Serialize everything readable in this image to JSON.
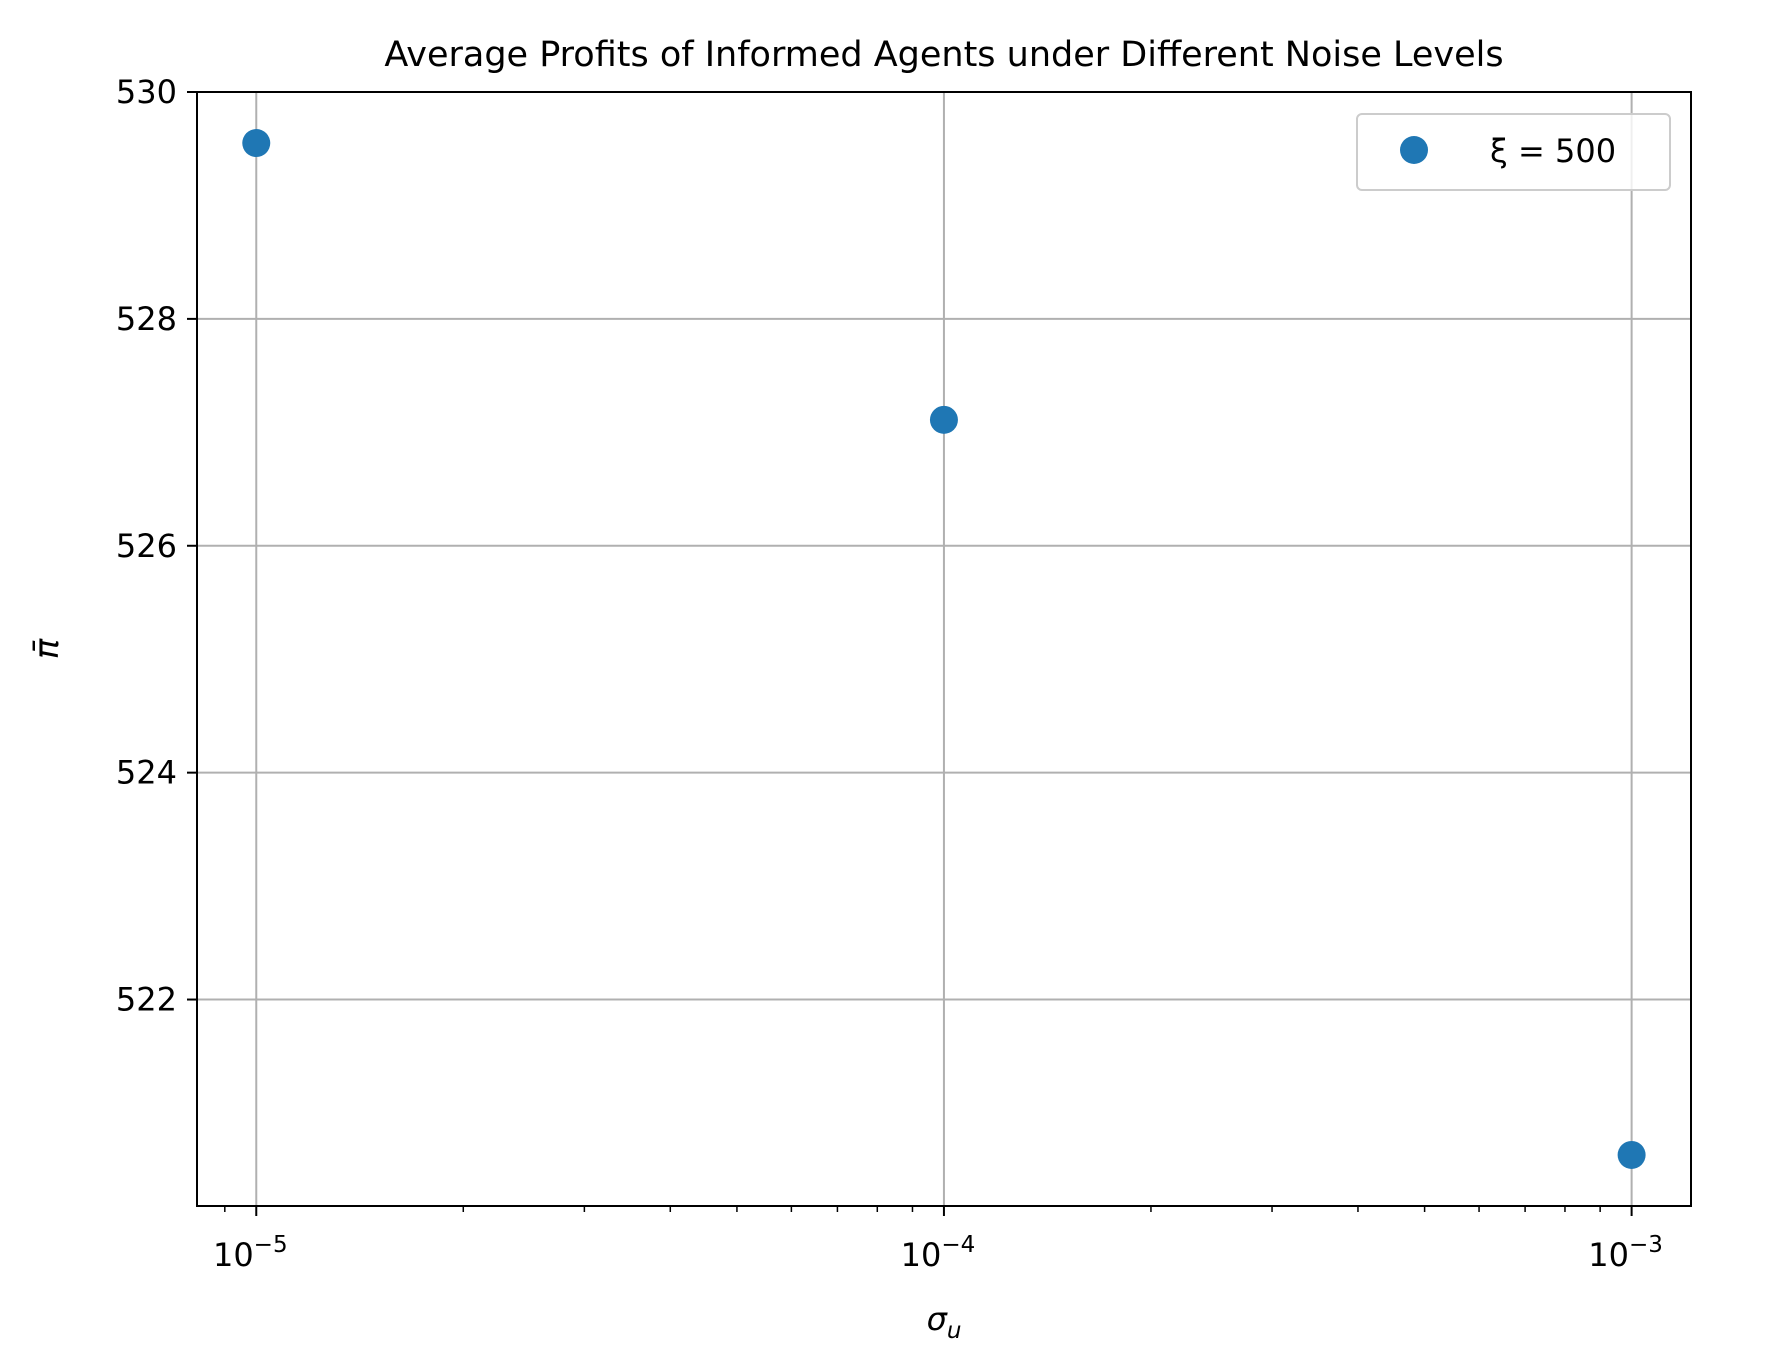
{
  "chart_data": {
    "type": "scatter",
    "title": "Average Profits of Informed Agents under Different Noise Levels",
    "xlabel": "σ",
    "xlabel_sub": "u",
    "ylabel": "π̄",
    "x_scale": "log",
    "xlim": [
      8.2e-06,
      0.00122
    ],
    "ylim": [
      520.18,
      530.0
    ],
    "x_ticks": [
      {
        "value": 1e-05,
        "base": "10",
        "exp": "−5"
      },
      {
        "value": 0.0001,
        "base": "10",
        "exp": "−4"
      },
      {
        "value": 0.001,
        "base": "10",
        "exp": "−3"
      }
    ],
    "y_ticks": [
      {
        "value": 522,
        "label": "522"
      },
      {
        "value": 524,
        "label": "524"
      },
      {
        "value": 526,
        "label": "526"
      },
      {
        "value": 528,
        "label": "528"
      },
      {
        "value": 530,
        "label": "530"
      }
    ],
    "grid": true,
    "legend_position": "top-right",
    "series": [
      {
        "name": "ξ = 500",
        "color": "#1f77b4",
        "x": [
          1e-05,
          0.0001,
          0.001
        ],
        "y": [
          529.55,
          527.11,
          520.63
        ]
      }
    ]
  }
}
